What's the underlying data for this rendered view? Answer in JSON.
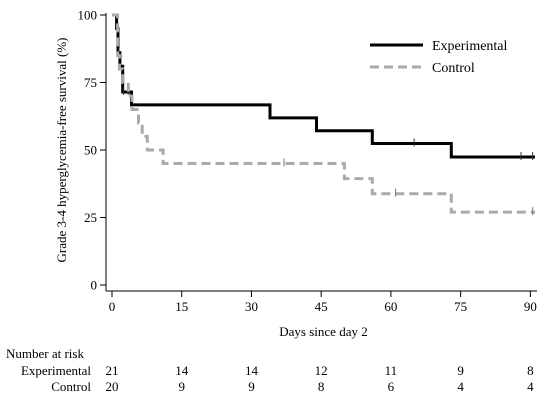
{
  "chart_data": {
    "type": "line",
    "subtype": "kaplan-meier-step",
    "xlabel": "Days since day 2",
    "ylabel": "Grade 3-4 hyperglycemia-free survival (%)",
    "xlim": [
      0,
      91
    ],
    "ylim": [
      0,
      100
    ],
    "x_ticks": [
      0,
      15,
      30,
      45,
      60,
      75,
      90
    ],
    "y_ticks": [
      0,
      25,
      50,
      75,
      100
    ],
    "legend_position": "top-right",
    "series": [
      {
        "name": "Experimental",
        "color": "#000000",
        "line_style": "solid",
        "steps": [
          [
            0,
            100
          ],
          [
            1,
            95
          ],
          [
            1.3,
            86
          ],
          [
            1.7,
            81
          ],
          [
            2.3,
            71.5
          ],
          [
            3.5,
            71.5
          ],
          [
            4.2,
            66.7
          ],
          [
            34,
            61.9
          ],
          [
            44,
            57.1
          ],
          [
            56,
            52.4
          ],
          [
            73,
            47.4
          ],
          [
            91,
            47.4
          ]
        ],
        "censor_x": [
          1.5,
          2.5,
          3.5,
          65,
          88,
          90.5
        ]
      },
      {
        "name": "Control",
        "color": "#aaaaaa",
        "line_style": "dashed",
        "steps": [
          [
            0,
            100
          ],
          [
            1.2,
            85
          ],
          [
            1.6,
            80
          ],
          [
            2.3,
            75
          ],
          [
            3.5,
            70
          ],
          [
            4.3,
            65
          ],
          [
            5.7,
            60
          ],
          [
            6.5,
            55
          ],
          [
            7.6,
            50
          ],
          [
            11,
            45
          ],
          [
            50,
            39.4
          ],
          [
            56,
            33.8
          ],
          [
            73,
            27
          ],
          [
            91,
            27
          ]
        ],
        "censor_x": [
          37,
          61,
          90.5
        ]
      }
    ],
    "risk_table": {
      "title": "Number at risk",
      "times": [
        0,
        15,
        30,
        45,
        60,
        75,
        90
      ],
      "rows": [
        {
          "label": "Experimental",
          "values": [
            "21",
            "14",
            "14",
            "12",
            "11",
            "9",
            "8"
          ]
        },
        {
          "label": "Control",
          "values": [
            "20",
            "9",
            "9",
            "8",
            "6",
            "4",
            "4"
          ]
        }
      ]
    }
  }
}
